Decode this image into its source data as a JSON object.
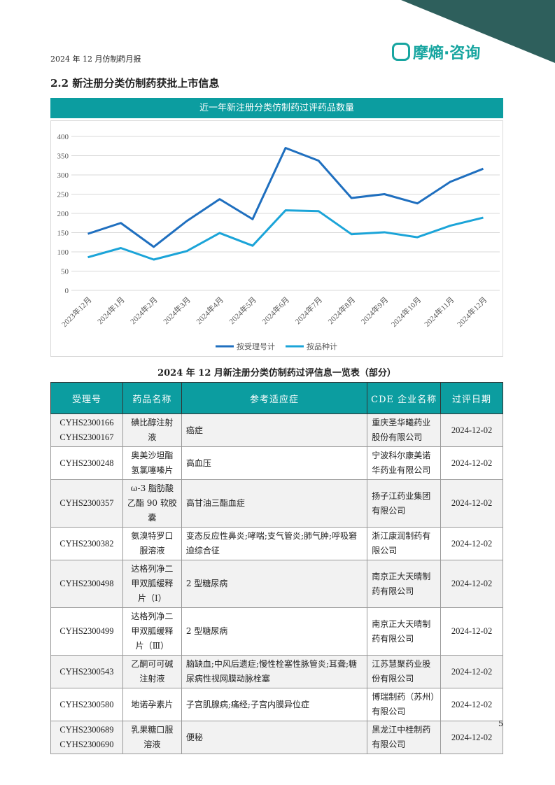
{
  "header": {
    "report": "2024 年 12 月仿制药月报",
    "logo": "摩熵·咨询"
  },
  "section_title": "2.2 新注册分类仿制药获批上市信息",
  "chart_data": {
    "type": "line",
    "title": "近一年新注册分类仿制药过评药品数量",
    "categories": [
      "2023年12月",
      "2024年1月",
      "2024年2月",
      "2024年3月",
      "2024年4月",
      "2024年5月",
      "2024年6月",
      "2024年7月",
      "2024年8月",
      "2024年9月",
      "2024年10月",
      "2024年11月",
      "2024年12月"
    ],
    "series": [
      {
        "name": "按受理号计",
        "color": "#1f6fbf",
        "values": [
          147,
          175,
          113,
          180,
          237,
          185,
          370,
          337,
          240,
          250,
          226,
          282,
          316
        ]
      },
      {
        "name": "按品种计",
        "color": "#1ba4d8",
        "values": [
          86,
          110,
          80,
          102,
          149,
          116,
          208,
          206,
          146,
          151,
          138,
          168,
          189
        ]
      }
    ],
    "ylim": [
      0,
      400
    ],
    "yticks": [
      0,
      50,
      100,
      150,
      200,
      250,
      300,
      350,
      400
    ],
    "grid": true,
    "legend": "bottom"
  },
  "table": {
    "title": "2024 年 12 月新注册分类仿制药过评信息一览表（部分）",
    "headers": [
      "受理号",
      "药品名称",
      "参考适应症",
      "CDE 企业名称",
      "过评日期"
    ],
    "rows": [
      [
        "CYHS2300166\nCYHS2300167",
        "碘比醇注射液",
        "癌症",
        "重庆圣华曦药业股份有限公司",
        "2024-12-02"
      ],
      [
        "CYHS2300248",
        "奥美沙坦酯氢氯噻嗪片",
        "高血压",
        "宁波科尔康美诺华药业有限公司",
        "2024-12-02"
      ],
      [
        "CYHS2300357",
        "ω-3 脂肪酸乙酯 90 软胶囊",
        "高甘油三酯血症",
        "扬子江药业集团有限公司",
        "2024-12-02"
      ],
      [
        "CYHS2300382",
        "氨溴特罗口服溶液",
        "变态反应性鼻炎;哮喘;支气管炎;肺气肿;呼吸窘迫综合征",
        "浙江康润制药有限公司",
        "2024-12-02"
      ],
      [
        "CYHS2300498",
        "达格列净二甲双胍缓释片（Ⅰ）",
        "2 型糖尿病",
        "南京正大天晴制药有限公司",
        "2024-12-02"
      ],
      [
        "CYHS2300499",
        "达格列净二甲双胍缓释片（Ⅲ）",
        "2 型糖尿病",
        "南京正大天晴制药有限公司",
        "2024-12-02"
      ],
      [
        "CYHS2300543",
        "乙酮可可碱注射液",
        "脑缺血;中风后遗症;慢性栓塞性脉管炎;耳聋;糖尿病性视网膜动脉栓塞",
        "江苏慧聚药业股份有限公司",
        "2024-12-02"
      ],
      [
        "CYHS2300580",
        "地诺孕素片",
        "子宫肌腺病;痛经;子宫内膜异位症",
        "博瑞制药（苏州）有限公司",
        "2024-12-02"
      ],
      [
        "CYHS2300689\nCYHS2300690",
        "乳果糖口服溶液",
        "便秘",
        "黑龙江中桂制药有限公司",
        "2024-12-02"
      ]
    ]
  },
  "page_number": "5"
}
